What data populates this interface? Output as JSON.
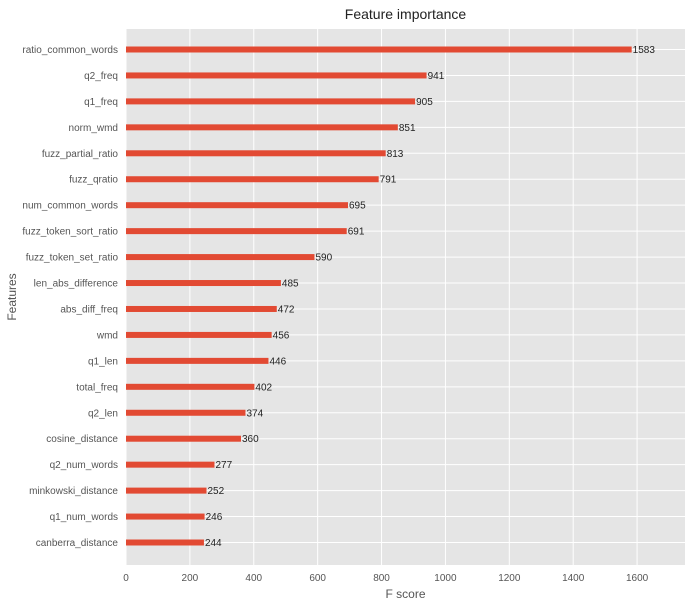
{
  "chart_data": {
    "type": "bar",
    "orientation": "horizontal",
    "title": "Feature importance",
    "xlabel": "F score",
    "ylabel": "Features",
    "xlim": [
      0,
      1750
    ],
    "xticks": [
      0,
      200,
      400,
      600,
      800,
      1000,
      1200,
      1400,
      1600
    ],
    "grid": true,
    "categories": [
      "ratio_common_words",
      "q2_freq",
      "q1_freq",
      "norm_wmd",
      "fuzz_partial_ratio",
      "fuzz_qratio",
      "num_common_words",
      "fuzz_token_sort_ratio",
      "fuzz_token_set_ratio",
      "len_abs_difference",
      "abs_diff_freq",
      "wmd",
      "q1_len",
      "total_freq",
      "q2_len",
      "cosine_distance",
      "q2_num_words",
      "minkowski_distance",
      "q1_num_words",
      "canberra_distance"
    ],
    "values": [
      1583,
      941,
      905,
      851,
      813,
      791,
      695,
      691,
      590,
      485,
      472,
      456,
      446,
      402,
      374,
      360,
      277,
      252,
      246,
      244
    ],
    "bar_color": "#e24a33",
    "background_color": "#e5e5e5"
  }
}
